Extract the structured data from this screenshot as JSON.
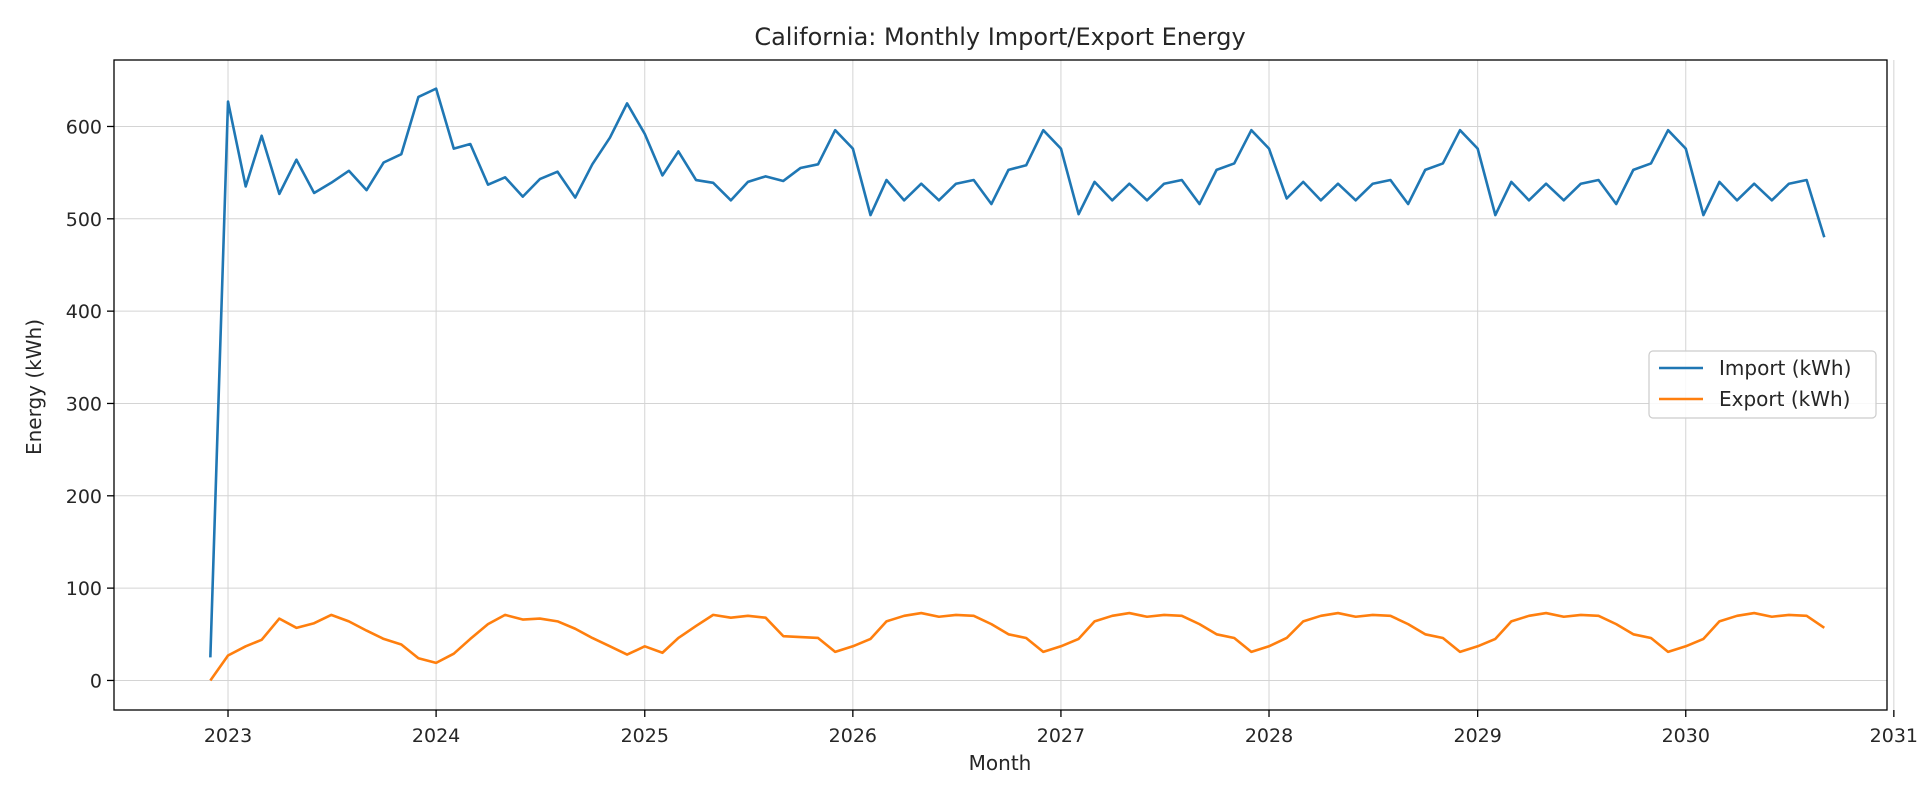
{
  "chart_data": {
    "type": "line",
    "title": "California: Monthly Import/Export Energy",
    "xlabel": "Month",
    "ylabel": "Energy (kWh)",
    "x_axis_type": "date",
    "xlim": [
      "2022-06-15",
      "2030-12-20"
    ],
    "ylim": [
      -32,
      672
    ],
    "xticks": [
      "2023",
      "2024",
      "2025",
      "2026",
      "2027",
      "2028",
      "2029",
      "2030",
      "2031"
    ],
    "xtick_dates": [
      "2023-01-01",
      "2024-01-01",
      "2025-01-01",
      "2026-01-01",
      "2027-01-01",
      "2028-01-01",
      "2029-01-01",
      "2030-01-01",
      "2031-01-01"
    ],
    "yticks": [
      0,
      100,
      200,
      300,
      400,
      500,
      600
    ],
    "grid": true,
    "legend_position": "center-right",
    "x": [
      "2022-12-01",
      "2023-01-01",
      "2023-02-01",
      "2023-03-01",
      "2023-04-01",
      "2023-05-01",
      "2023-06-01",
      "2023-07-01",
      "2023-08-01",
      "2023-09-01",
      "2023-10-01",
      "2023-11-01",
      "2023-12-01",
      "2024-01-01",
      "2024-02-01",
      "2024-03-01",
      "2024-04-01",
      "2024-05-01",
      "2024-06-01",
      "2024-07-01",
      "2024-08-01",
      "2024-09-01",
      "2024-10-01",
      "2024-11-01",
      "2024-12-01",
      "2025-01-01",
      "2025-02-01",
      "2025-03-01",
      "2025-04-01",
      "2025-05-01",
      "2025-06-01",
      "2025-07-01",
      "2025-08-01",
      "2025-09-01",
      "2025-10-01",
      "2025-11-01",
      "2025-12-01",
      "2026-01-01",
      "2026-02-01",
      "2026-03-01",
      "2026-04-01",
      "2026-05-01",
      "2026-06-01",
      "2026-07-01",
      "2026-08-01",
      "2026-09-01",
      "2026-10-01",
      "2026-11-01",
      "2026-12-01",
      "2027-01-01",
      "2027-02-01",
      "2027-03-01",
      "2027-04-01",
      "2027-05-01",
      "2027-06-01",
      "2027-07-01",
      "2027-08-01",
      "2027-09-01",
      "2027-10-01",
      "2027-11-01",
      "2027-12-01",
      "2028-01-01",
      "2028-02-01",
      "2028-03-01",
      "2028-04-01",
      "2028-05-01",
      "2028-06-01",
      "2028-07-01",
      "2028-08-01",
      "2028-09-01",
      "2028-10-01",
      "2028-11-01",
      "2028-12-01",
      "2029-01-01",
      "2029-02-01",
      "2029-03-01",
      "2029-04-01",
      "2029-05-01",
      "2029-06-01",
      "2029-07-01",
      "2029-08-01",
      "2029-09-01",
      "2029-10-01",
      "2029-11-01",
      "2029-12-01",
      "2030-01-01",
      "2030-02-01",
      "2030-03-01",
      "2030-04-01",
      "2030-05-01",
      "2030-06-01",
      "2030-07-01",
      "2030-08-01",
      "2030-09-01"
    ],
    "series": [
      {
        "name": "Import (kWh)",
        "color": "#1f77b4",
        "values": [
          25,
          627,
          535,
          590,
          527,
          564,
          528,
          539,
          552,
          531,
          561,
          570,
          632,
          641,
          576,
          581,
          537,
          545,
          524,
          543,
          551,
          523,
          559,
          588,
          625,
          592,
          547,
          573,
          542,
          539,
          520,
          540,
          546,
          541,
          555,
          559,
          596,
          576,
          504,
          542,
          520,
          538,
          520,
          538,
          542,
          516,
          553,
          558,
          596,
          576,
          505,
          540,
          520,
          538,
          520,
          538,
          542,
          516,
          553,
          560,
          596,
          576,
          522,
          540,
          520,
          538,
          520,
          538,
          542,
          516,
          553,
          560,
          596,
          576,
          504,
          540,
          520,
          538,
          520,
          538,
          542,
          516,
          553,
          560,
          596,
          576,
          504,
          540,
          520,
          538,
          520,
          538,
          542,
          480
        ]
      },
      {
        "name": "Export (kWh)",
        "color": "#ff7f0e",
        "values": [
          0,
          27,
          37,
          44,
          67,
          57,
          62,
          71,
          64,
          54,
          45,
          39,
          24,
          19,
          29,
          45,
          61,
          71,
          66,
          67,
          64,
          56,
          46,
          37,
          28,
          37,
          30,
          46,
          59,
          71,
          68,
          70,
          68,
          48,
          47,
          46,
          31,
          37,
          45,
          64,
          70,
          73,
          69,
          71,
          70,
          61,
          50,
          46,
          31,
          37,
          45,
          64,
          70,
          73,
          69,
          71,
          70,
          61,
          50,
          46,
          31,
          37,
          46,
          64,
          70,
          73,
          69,
          71,
          70,
          61,
          50,
          46,
          31,
          37,
          45,
          64,
          70,
          73,
          69,
          71,
          70,
          61,
          50,
          46,
          31,
          37,
          45,
          64,
          70,
          73,
          69,
          71,
          70,
          57
        ]
      }
    ]
  }
}
